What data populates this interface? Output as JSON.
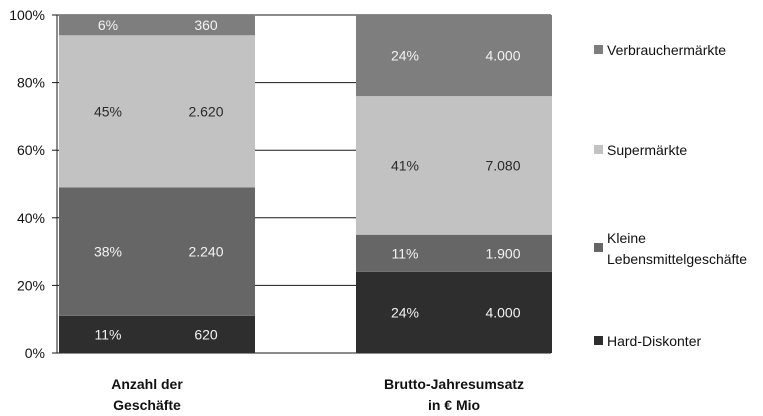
{
  "chart_data": {
    "type": "bar",
    "stacked": true,
    "percent_stacked": true,
    "y_ticks": [
      "0%",
      "20%",
      "40%",
      "60%",
      "80%",
      "100%"
    ],
    "ylim": [
      0,
      100
    ],
    "grid": "horizontal lines between bars",
    "legend_position": "right",
    "categories": [
      [
        "Anzahl der",
        "Geschäfte"
      ],
      [
        "Brutto-Jahresumsatz",
        "in € Mio"
      ]
    ],
    "series": [
      {
        "name": "Hard-Diskonter",
        "color": "#2e2e2e",
        "values": [
          11,
          24
        ],
        "pct_labels": [
          "11%",
          "24%"
        ],
        "abs_labels": [
          "620",
          "4.000"
        ]
      },
      {
        "name": "Kleine Lebensmittelgeschäfte",
        "legend_lines": [
          "Kleine",
          "Lebensmittelgeschäfte"
        ],
        "color": "#666666",
        "values": [
          38,
          11
        ],
        "pct_labels": [
          "38%",
          "11%"
        ],
        "abs_labels": [
          "2.240",
          "1.900"
        ]
      },
      {
        "name": "Supermärkte",
        "color": "#c2c2c2",
        "values": [
          45,
          41
        ],
        "pct_labels": [
          "45%",
          "41%"
        ],
        "abs_labels": [
          "2.620",
          "7.080"
        ]
      },
      {
        "name": "Verbrauchermärkte",
        "color": "#7e7e7e",
        "values": [
          6,
          24
        ],
        "pct_labels": [
          "6%",
          "24%"
        ],
        "abs_labels": [
          "360",
          "4.000"
        ]
      }
    ]
  }
}
